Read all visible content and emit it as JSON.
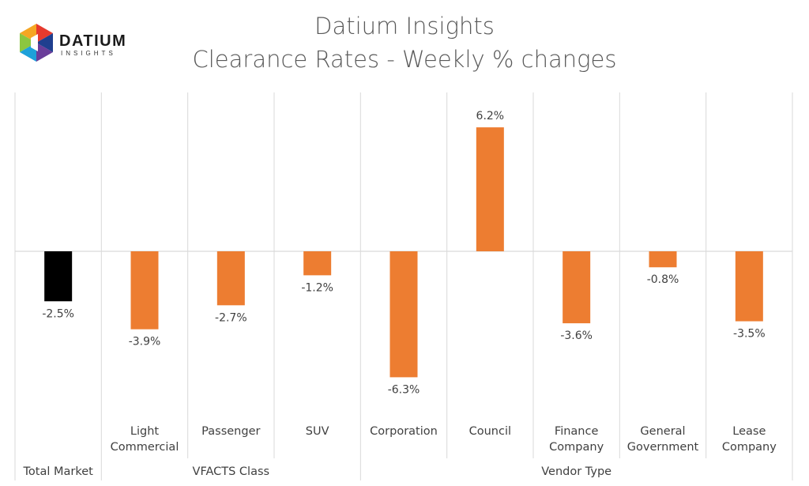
{
  "logo": {
    "word": "DATIUM",
    "sub": "INSIGHTS",
    "colors": [
      "#e63a2e",
      "#f5a623",
      "#8cc63f",
      "#1ea1d9",
      "#6a3d9a",
      "#1f3f8f"
    ]
  },
  "header": {
    "title": "Datium Insights",
    "subtitle": "Clearance Rates - Weekly % changes"
  },
  "chart_data": {
    "type": "bar",
    "categories": [
      "Total Market",
      "Light Commercial",
      "Passenger",
      "SUV",
      "Corporation",
      "Council",
      "Finance Company",
      "General Government",
      "Lease Company"
    ],
    "category_lines": [
      [
        "Total Market"
      ],
      [
        "Light",
        "Commercial"
      ],
      [
        "Passenger"
      ],
      [
        "SUV"
      ],
      [
        "Corporation"
      ],
      [
        "Council"
      ],
      [
        "Finance",
        "Company"
      ],
      [
        "General",
        "Government"
      ],
      [
        "Lease",
        "Company"
      ]
    ],
    "groups": [
      {
        "label": "",
        "start": 0,
        "end": 0
      },
      {
        "label": "VFACTS Class",
        "start": 1,
        "end": 3
      },
      {
        "label": "Vendor Type",
        "start": 4,
        "end": 8
      }
    ],
    "values": [
      -2.5,
      -3.9,
      -2.7,
      -1.2,
      -6.3,
      6.2,
      -3.6,
      -0.8,
      -3.5
    ],
    "labels": [
      "-2.5%",
      "-3.9%",
      "-2.7%",
      "-1.2%",
      "-6.3%",
      "6.2%",
      "-3.6%",
      "-0.8%",
      "-3.5%"
    ],
    "colors": [
      "#000000",
      "#ed7d31",
      "#ed7d31",
      "#ed7d31",
      "#ed7d31",
      "#ed7d31",
      "#ed7d31",
      "#ed7d31",
      "#ed7d31"
    ],
    "title": "Clearance Rates - Weekly % changes",
    "xlabel": "",
    "ylabel": "",
    "ylim": [
      -7,
      7
    ],
    "grid": true,
    "legend": "none"
  }
}
